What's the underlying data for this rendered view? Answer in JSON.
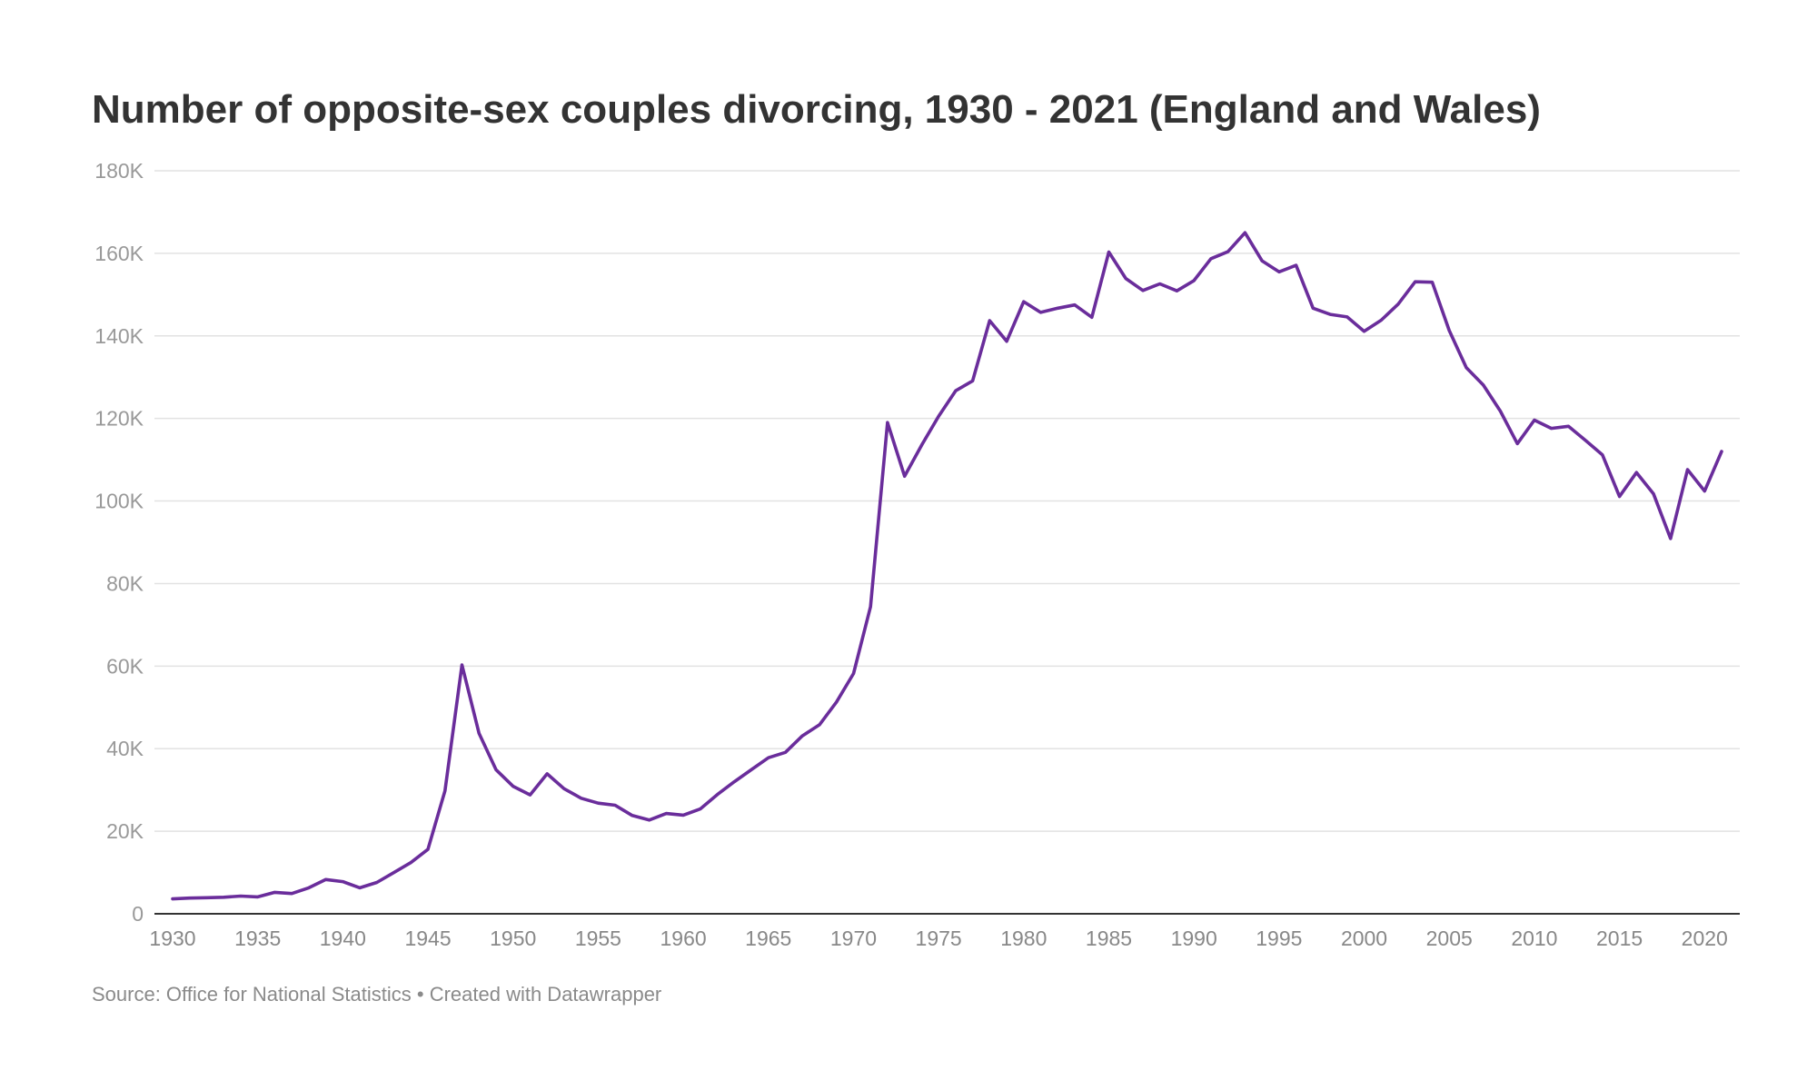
{
  "title": "Number of opposite-sex couples divorcing, 1930 - 2021 (England and Wales)",
  "footer": {
    "source_label": "Source: Office for National Statistics",
    "separator": " • ",
    "credit": "Created with Datawrapper"
  },
  "colors": {
    "line": "#6a2d9b",
    "grid": "#e2e2e2",
    "axis": "#333333"
  },
  "chart_data": {
    "type": "line",
    "title": "Number of opposite-sex couples divorcing, 1930 - 2021 (England and Wales)",
    "xlabel": "",
    "ylabel": "",
    "xlim": [
      1930,
      2021
    ],
    "ylim": [
      0,
      180000
    ],
    "grid": true,
    "legend": "none",
    "y_ticks": [
      0,
      20000,
      40000,
      60000,
      80000,
      100000,
      120000,
      140000,
      160000,
      180000
    ],
    "y_tick_labels": [
      "0",
      "20K",
      "40K",
      "60K",
      "80K",
      "100K",
      "120K",
      "140K",
      "160K",
      "180K"
    ],
    "x_ticks": [
      1930,
      1935,
      1940,
      1945,
      1950,
      1955,
      1960,
      1965,
      1970,
      1975,
      1980,
      1985,
      1990,
      1995,
      2000,
      2005,
      2010,
      2015,
      2020
    ],
    "x_tick_labels": [
      "1930",
      "1935",
      "1940",
      "1945",
      "1950",
      "1955",
      "1960",
      "1965",
      "1970",
      "1975",
      "1980",
      "1985",
      "1990",
      "1995",
      "2000",
      "2005",
      "2010",
      "2015",
      "2020"
    ],
    "series": [
      {
        "x": [
          1930,
          1931,
          1932,
          1933,
          1934,
          1935,
          1936,
          1937,
          1938,
          1939,
          1940,
          1941,
          1942,
          1943,
          1944,
          1945,
          1946,
          1947,
          1948,
          1949,
          1950,
          1951,
          1952,
          1953,
          1954,
          1955,
          1956,
          1957,
          1958,
          1959,
          1960,
          1961,
          1962,
          1963,
          1964,
          1965,
          1966,
          1967,
          1968,
          1969,
          1970,
          1971,
          1972,
          1973,
          1974,
          1975,
          1976,
          1977,
          1978,
          1979,
          1980,
          1981,
          1982,
          1983,
          1984,
          1985,
          1986,
          1987,
          1988,
          1989,
          1990,
          1991,
          1992,
          1993,
          1994,
          1995,
          1996,
          1997,
          1998,
          1999,
          2000,
          2001,
          2002,
          2003,
          2004,
          2005,
          2006,
          2007,
          2008,
          2009,
          2010,
          2011,
          2012,
          2013,
          2014,
          2015,
          2016,
          2017,
          2018,
          2019,
          2020,
          2021
        ],
        "y": [
          3600,
          3800,
          3900,
          4000,
          4300,
          4100,
          5200,
          4900,
          6300,
          8300,
          7800,
          6300,
          7600,
          10000,
          12400,
          15600,
          29800,
          60300,
          43700,
          34900,
          30900,
          28800,
          33900,
          30300,
          28000,
          26800,
          26300,
          23800,
          22700,
          24300,
          23900,
          25400,
          28900,
          32000,
          34900,
          37800,
          39100,
          43100,
          45800,
          51300,
          58200,
          74400,
          119000,
          106000,
          113500,
          120500,
          126700,
          129100,
          143700,
          138700,
          148300,
          145700,
          146700,
          147500,
          144500,
          160300,
          153900,
          151000,
          152600,
          150900,
          153400,
          158700,
          160400,
          165000,
          158200,
          155500,
          157100,
          146700,
          145200,
          144600,
          141100,
          143800,
          147700,
          153100,
          153000,
          141300,
          132300,
          128100,
          121800,
          113900,
          119600,
          117600,
          118100,
          114700,
          111200,
          101100,
          106900,
          101700,
          90900,
          107600,
          102400,
          112000
        ]
      }
    ]
  }
}
